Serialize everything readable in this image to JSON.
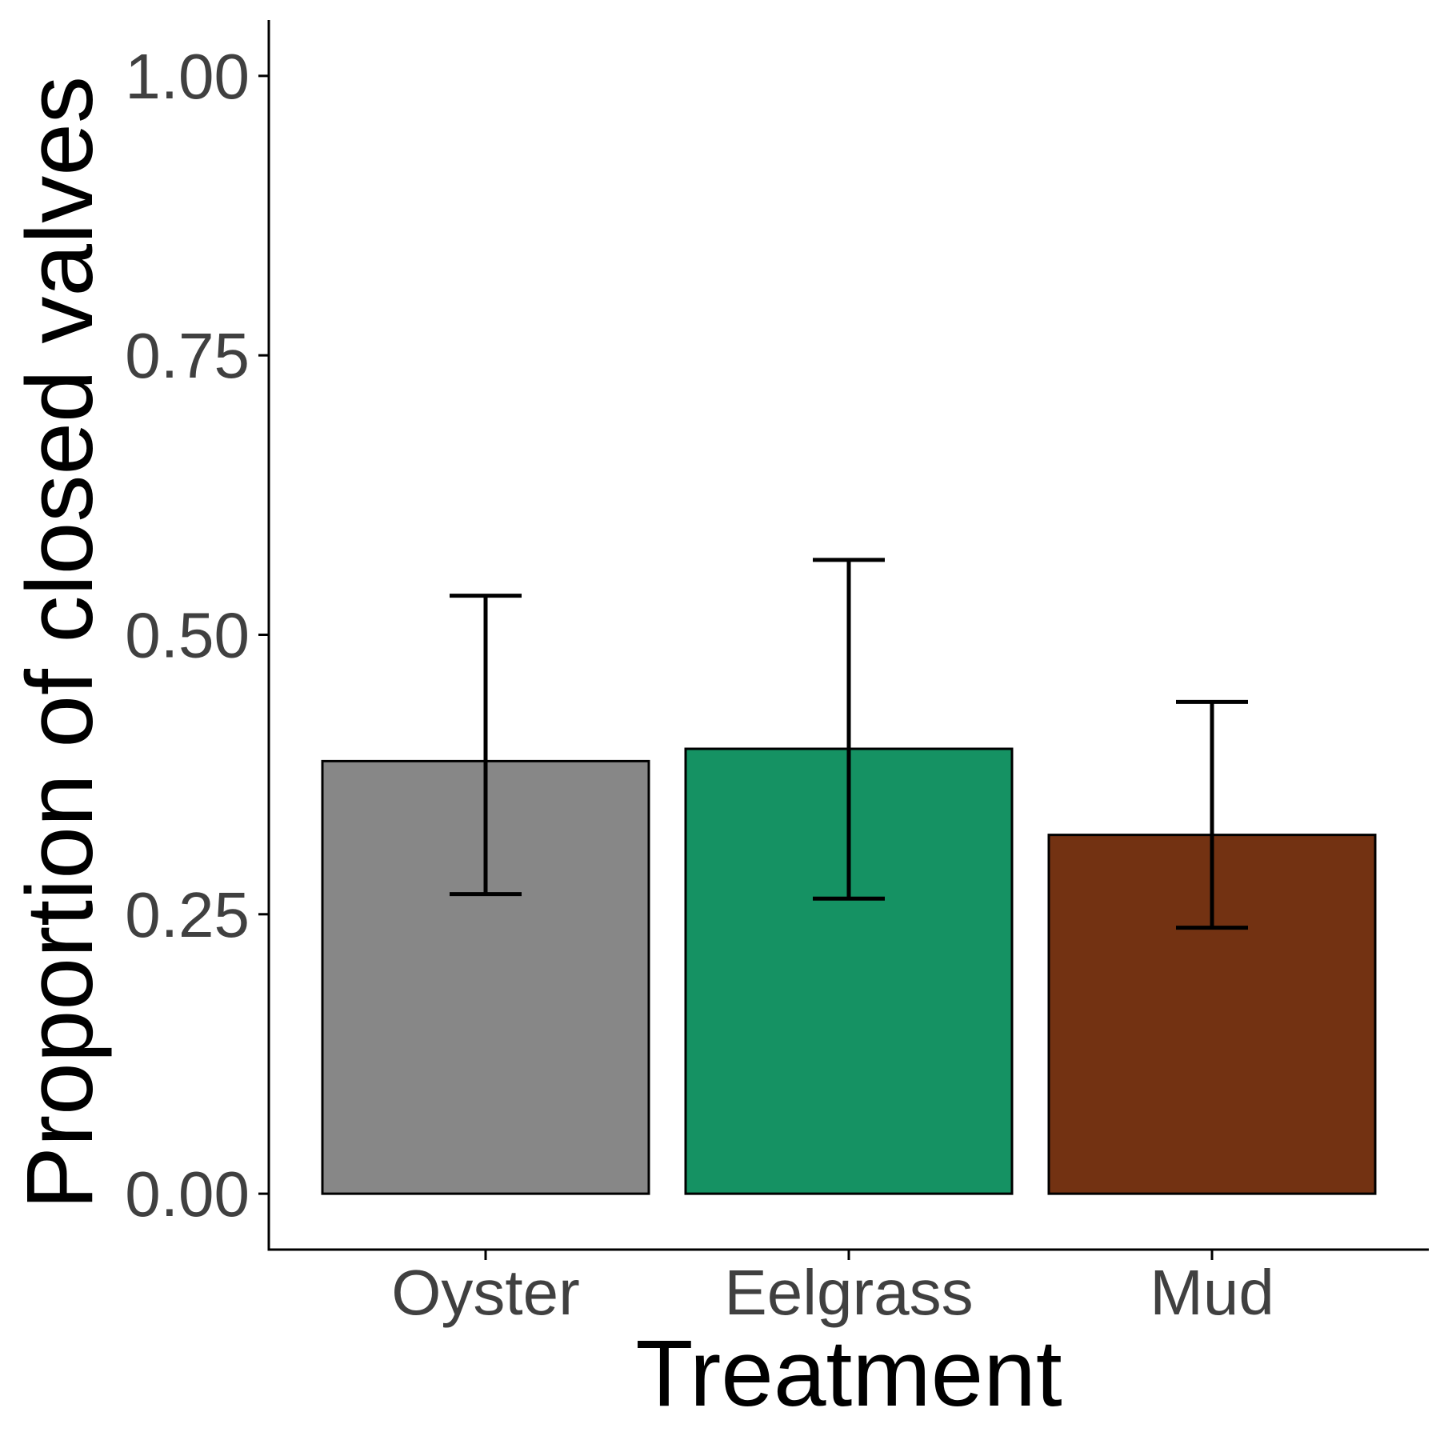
{
  "chart_data": {
    "type": "bar",
    "title": "",
    "xlabel": "Treatment",
    "ylabel": "Proportion of closed valves",
    "categories": [
      "Oyster",
      "Eelgrass",
      "Mud"
    ],
    "values": [
      0.387,
      0.398,
      0.321
    ],
    "error_low": [
      0.268,
      0.264,
      0.238
    ],
    "error_high": [
      0.535,
      0.567,
      0.44
    ],
    "colors": [
      "#878787",
      "#159263",
      "#733212"
    ],
    "ylim": [
      -0.05,
      1.05
    ],
    "yticks": [
      0.0,
      0.25,
      0.5,
      0.75,
      1.0
    ],
    "ytick_labels": [
      "0.00",
      "0.25",
      "0.50",
      "0.75",
      "1.00"
    ],
    "grid": false,
    "legend": "none"
  }
}
